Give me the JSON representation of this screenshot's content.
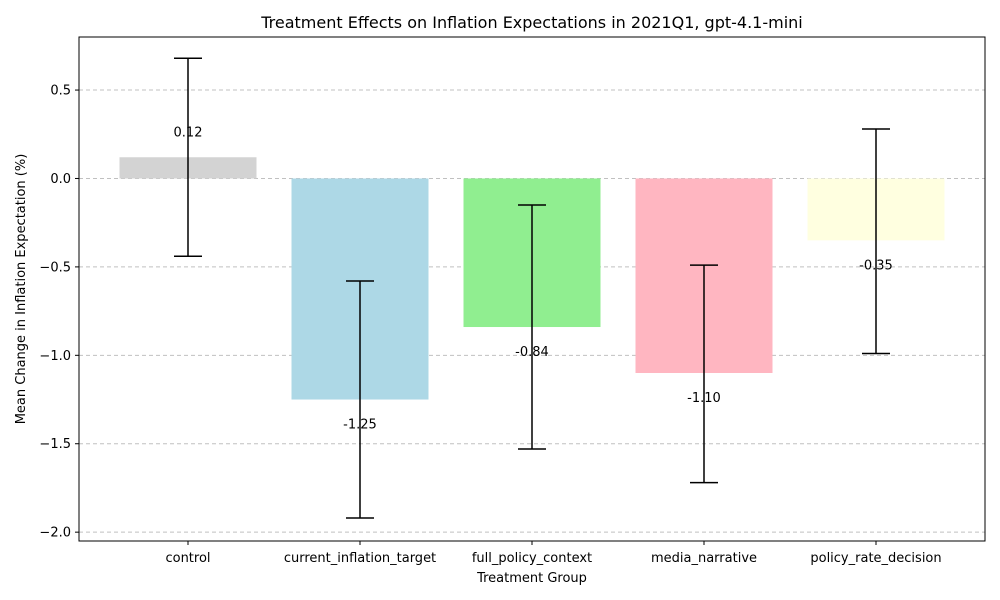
{
  "chart_data": {
    "type": "bar",
    "title": "Treatment Effects on Inflation Expectations in 2021Q1, gpt-4.1-mini",
    "xlabel": "Treatment Group",
    "ylabel": "Mean Change in Inflation Expectation (%)",
    "categories": [
      "control",
      "current_inflation_target",
      "full_policy_context",
      "media_narrative",
      "policy_rate_decision"
    ],
    "values": [
      0.12,
      -1.25,
      -0.84,
      -1.1,
      -0.35
    ],
    "value_labels": [
      "0.12",
      "-1.25",
      "-0.84",
      "-1.10",
      "-0.35"
    ],
    "error_low": [
      -0.44,
      -1.92,
      -1.53,
      -1.72,
      -0.99
    ],
    "error_high": [
      0.68,
      -0.58,
      -0.15,
      -0.49,
      0.28
    ],
    "colors": [
      "#d3d3d3",
      "#add8e6",
      "#90ee90",
      "#ffb6c1",
      "#ffffe0"
    ],
    "ylim": [
      -2.05,
      0.8
    ],
    "yticks": [
      0.5,
      0.0,
      -0.5,
      -1.0,
      -1.5,
      -2.0
    ],
    "ytick_labels": [
      "0.5",
      "0.0",
      "−0.5",
      "−1.0",
      "−1.5",
      "−2.0"
    ],
    "grid": "y-dashed"
  }
}
